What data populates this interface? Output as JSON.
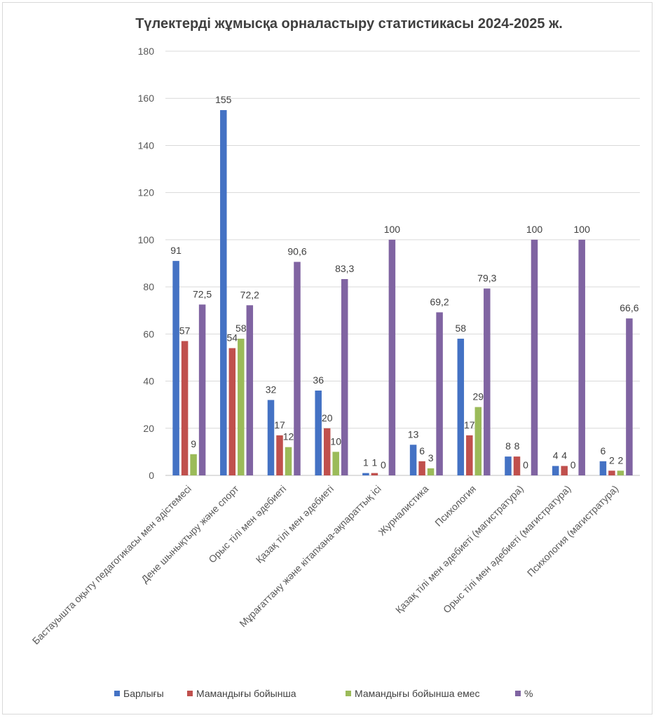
{
  "chart_data": {
    "type": "bar",
    "title": "Түлектерді жұмысқа орналастыру статистикасы 2024-2025 ж.",
    "xlabel": "",
    "ylabel": "",
    "ylim": [
      0,
      180
    ],
    "yticks": [
      0,
      20,
      40,
      60,
      80,
      100,
      120,
      140,
      160,
      180
    ],
    "grid": true,
    "legend_position": "bottom",
    "categories": [
      "Бастауышта оқыту педагогикасы мен әдістемесі",
      "Дене шынықтыру және спорт",
      "Орыс тілі мен әдебиеті",
      "Қазақ тілі мен әдебиеті",
      "Мұрағаттану және кітапхана-ақпараттық ісі",
      "Журналистика",
      "Психология",
      "Қазақ тілі мен әдебиеті (магистратура)",
      "Орыс тілі мен әдебиеті (магистратура)",
      "Психология (магистратура)"
    ],
    "series": [
      {
        "name": "Барлығы",
        "color": "#4472c4",
        "values": [
          91,
          155,
          32,
          36,
          1,
          13,
          58,
          8,
          4,
          6
        ],
        "labels": [
          "91",
          "155",
          "32",
          "36",
          "1",
          "13",
          "58",
          "8",
          "4",
          "6"
        ]
      },
      {
        "name": "Мамандығы бойынша",
        "color": "#c0504d",
        "values": [
          57,
          54,
          17,
          20,
          1,
          6,
          17,
          8,
          4,
          2
        ],
        "labels": [
          "57",
          "54",
          "17",
          "20",
          "1",
          "6",
          "17",
          "8",
          "4",
          "2"
        ]
      },
      {
        "name": "Мамандығы бойынша емес",
        "color": "#9bbb59",
        "values": [
          9,
          58,
          12,
          10,
          0,
          3,
          29,
          0,
          0,
          2
        ],
        "labels": [
          "9",
          "58",
          "12",
          "10",
          "0",
          "3",
          "29",
          "0",
          "0",
          "2"
        ]
      },
      {
        "name": "%",
        "color": "#8064a2",
        "values": [
          72.5,
          72.2,
          90.6,
          83.3,
          100,
          69.2,
          79.3,
          100,
          100,
          66.6
        ],
        "labels": [
          "72,5",
          "72,2",
          "90,6",
          "83,3",
          "100",
          "69,2",
          "79,3",
          "100",
          "100",
          "66,6"
        ]
      }
    ]
  }
}
